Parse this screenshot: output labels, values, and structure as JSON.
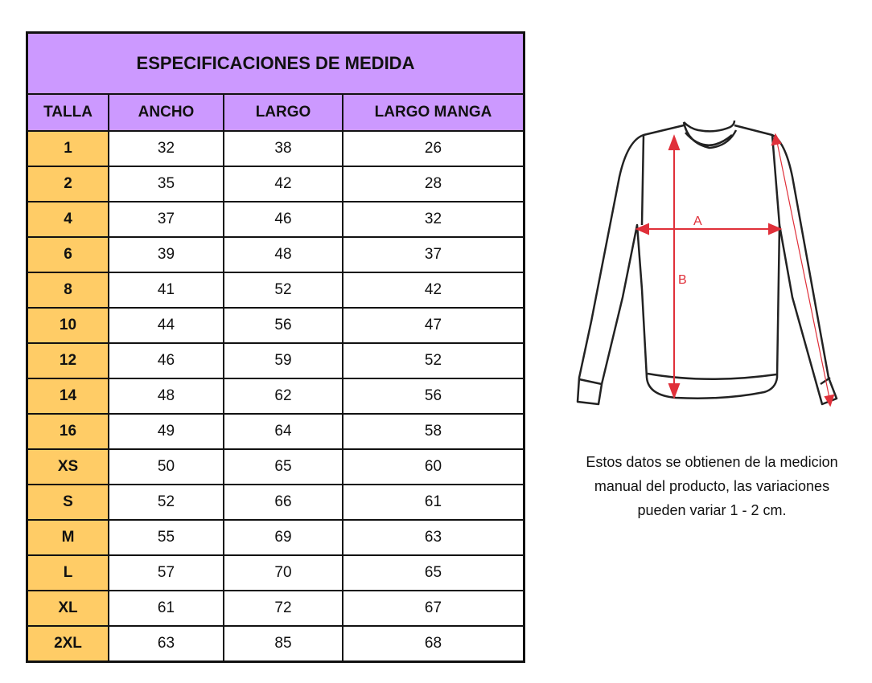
{
  "table": {
    "title": "ESPECIFICACIONES DE MEDIDA",
    "headers": [
      "TALLA",
      "ANCHO",
      "LARGO",
      "LARGO MANGA"
    ],
    "rows": [
      [
        "1",
        "32",
        "38",
        "26"
      ],
      [
        "2",
        "35",
        "42",
        "28"
      ],
      [
        "4",
        "37",
        "46",
        "32"
      ],
      [
        "6",
        "39",
        "48",
        "37"
      ],
      [
        "8",
        "41",
        "52",
        "42"
      ],
      [
        "10",
        "44",
        "56",
        "47"
      ],
      [
        "12",
        "46",
        "59",
        "52"
      ],
      [
        "14",
        "48",
        "62",
        "56"
      ],
      [
        "16",
        "49",
        "64",
        "58"
      ],
      [
        "XS",
        "50",
        "65",
        "60"
      ],
      [
        "S",
        "52",
        "66",
        "61"
      ],
      [
        "M",
        "55",
        "69",
        "63"
      ],
      [
        "L",
        "57",
        "70",
        "65"
      ],
      [
        "XL",
        "61",
        "72",
        "67"
      ],
      [
        "2XL",
        "63",
        "85",
        "68"
      ]
    ]
  },
  "diagram": {
    "label_a": "A",
    "label_b": "B",
    "arrow_color": "#e0303a"
  },
  "note": {
    "lines": [
      "Estos datos se obtienen de la medicion",
      "manual del producto, las variaciones",
      "pueden variar 1 - 2 cm."
    ]
  },
  "colors": {
    "header_bg": "#cc99ff",
    "size_bg": "#ffcc66"
  }
}
